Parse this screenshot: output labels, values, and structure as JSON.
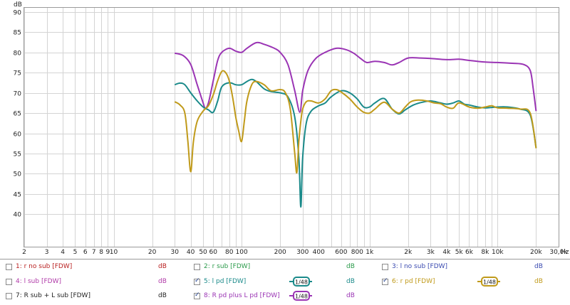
{
  "chart_data": {
    "type": "line",
    "ylabel": "dB",
    "xlabel": "Hz",
    "x_scale": "log",
    "xlim": [
      2,
      30000
    ],
    "ylim": [
      32,
      91
    ],
    "grid": true,
    "y_ticks": [
      40,
      45,
      50,
      55,
      60,
      65,
      70,
      75,
      80,
      85,
      90
    ],
    "x_ticks": [
      {
        "v": 2,
        "label": "2"
      },
      {
        "v": 3,
        "label": "3"
      },
      {
        "v": 4,
        "label": "4"
      },
      {
        "v": 5,
        "label": "5"
      },
      {
        "v": 6,
        "label": "6"
      },
      {
        "v": 7,
        "label": "7"
      },
      {
        "v": 8,
        "label": "8"
      },
      {
        "v": 9,
        "label": "9"
      },
      {
        "v": 10,
        "label": "10"
      },
      {
        "v": 20,
        "label": "20"
      },
      {
        "v": 30,
        "label": "30"
      },
      {
        "v": 40,
        "label": "40"
      },
      {
        "v": 50,
        "label": "50"
      },
      {
        "v": 60,
        "label": "60"
      },
      {
        "v": 80,
        "label": "80"
      },
      {
        "v": 100,
        "label": "100"
      },
      {
        "v": 200,
        "label": "200"
      },
      {
        "v": 300,
        "label": "300"
      },
      {
        "v": 400,
        "label": "400"
      },
      {
        "v": 600,
        "label": "600"
      },
      {
        "v": 800,
        "label": "800"
      },
      {
        "v": 1000,
        "label": "1k"
      },
      {
        "v": 2000,
        "label": "2k"
      },
      {
        "v": 3000,
        "label": "3k"
      },
      {
        "v": 4000,
        "label": "4k"
      },
      {
        "v": 5000,
        "label": "5k"
      },
      {
        "v": 6000,
        "label": "6k"
      },
      {
        "v": 8000,
        "label": "8k"
      },
      {
        "v": 10000,
        "label": "10k"
      },
      {
        "v": 20000,
        "label": "20k"
      },
      {
        "v": 30000,
        "label": "30,0k"
      }
    ],
    "series": [
      {
        "name": "8: R pd plus L pd [FDW]",
        "color": "#9a34b4",
        "x": [
          30,
          35,
          40,
          45,
          50,
          52,
          55,
          60,
          65,
          70,
          80,
          90,
          100,
          110,
          130,
          150,
          180,
          200,
          230,
          260,
          285,
          300,
          330,
          380,
          450,
          550,
          650,
          750,
          850,
          950,
          1100,
          1300,
          1500,
          1700,
          2000,
          2500,
          3000,
          4000,
          5000,
          6000,
          8000,
          10000,
          13000,
          16000,
          18000,
          19000,
          20000
        ],
        "y": [
          79.8,
          79.2,
          77.0,
          72.0,
          67.5,
          66.2,
          67.5,
          73.0,
          78.0,
          80.0,
          81.0,
          80.3,
          80.0,
          81.0,
          82.4,
          82.0,
          81.0,
          80.0,
          77.0,
          70.5,
          65.2,
          70.5,
          75.5,
          78.5,
          80.0,
          81.0,
          80.7,
          79.8,
          78.5,
          77.5,
          77.8,
          77.5,
          76.9,
          77.5,
          78.6,
          78.6,
          78.5,
          78.2,
          78.3,
          78.0,
          77.6,
          77.5,
          77.3,
          77.0,
          75.5,
          71.0,
          65.5
        ]
      },
      {
        "name": "5: l pd [FDW]",
        "color": "#1a8a8a",
        "x": [
          30,
          33,
          36,
          40,
          45,
          50,
          55,
          60,
          65,
          70,
          80,
          90,
          100,
          110,
          120,
          130,
          150,
          170,
          200,
          230,
          260,
          280,
          290,
          300,
          320,
          350,
          400,
          450,
          500,
          600,
          700,
          800,
          900,
          1000,
          1100,
          1300,
          1500,
          1700,
          1900,
          2200,
          2600,
          3000,
          3500,
          4000,
          4500,
          5000,
          5500,
          6000,
          7000,
          8000,
          10000,
          12000,
          15000,
          18000,
          20000
        ],
        "y": [
          72.0,
          72.4,
          72.0,
          70.0,
          68.0,
          66.5,
          65.8,
          65.2,
          68.0,
          71.5,
          72.5,
          72.0,
          72.0,
          72.8,
          73.3,
          72.8,
          71.0,
          70.3,
          70.0,
          69.0,
          64.0,
          54.0,
          41.8,
          54.0,
          62.5,
          65.5,
          66.8,
          67.5,
          69.0,
          70.5,
          70.0,
          68.5,
          66.5,
          66.5,
          67.5,
          68.6,
          66.0,
          64.8,
          65.8,
          67.0,
          67.7,
          68.0,
          67.6,
          67.2,
          67.5,
          68.0,
          67.2,
          67.0,
          66.5,
          66.3,
          66.5,
          66.5,
          66.0,
          64.5,
          56.5
        ]
      },
      {
        "name": "6: r pd [FDW]",
        "color": "#c09a1a",
        "x": [
          30,
          33,
          36,
          38,
          40,
          42,
          45,
          50,
          55,
          60,
          65,
          70,
          75,
          80,
          85,
          90,
          95,
          100,
          105,
          110,
          120,
          130,
          150,
          170,
          200,
          220,
          240,
          260,
          270,
          280,
          290,
          300,
          320,
          350,
          400,
          450,
          500,
          550,
          600,
          700,
          800,
          900,
          1000,
          1100,
          1300,
          1500,
          1700,
          1900,
          2100,
          2400,
          2800,
          3200,
          3600,
          4000,
          4500,
          5000,
          6000,
          7000,
          8000,
          9000,
          10000,
          12000,
          15000,
          18000,
          20000
        ],
        "y": [
          67.8,
          67.0,
          65.0,
          58.0,
          50.5,
          58.0,
          63.0,
          65.5,
          66.8,
          69.5,
          73.0,
          75.3,
          75.0,
          73.0,
          69.0,
          64.0,
          60.5,
          58.0,
          63.0,
          68.0,
          72.0,
          72.8,
          72.0,
          70.5,
          70.8,
          70.0,
          66.0,
          55.0,
          50.3,
          58.0,
          63.0,
          66.0,
          67.8,
          68.0,
          67.5,
          68.5,
          70.5,
          70.8,
          70.2,
          68.5,
          66.5,
          65.2,
          65.0,
          66.0,
          67.7,
          66.0,
          65.0,
          66.5,
          67.8,
          68.2,
          68.0,
          67.5,
          67.3,
          66.5,
          66.2,
          67.5,
          66.5,
          66.2,
          66.5,
          66.8,
          66.3,
          66.2,
          66.0,
          65.0,
          56.3
        ]
      }
    ]
  },
  "legend": {
    "rows": [
      [
        {
          "label": "1: r no sub [FDW]",
          "color": "#b81e1e",
          "unit": "dB",
          "checked": false,
          "smooth": ""
        },
        {
          "label": "2: r sub [FDW]",
          "color": "#2a9a4a",
          "unit": "dB",
          "checked": false,
          "smooth": ""
        },
        {
          "label": "3: l no sub [FDW]",
          "color": "#3a4ab0",
          "unit": "dB",
          "checked": false,
          "smooth": ""
        }
      ],
      [
        {
          "label": "4: l sub [FDW]",
          "color": "#b03aa8",
          "unit": "dB",
          "checked": false,
          "smooth": ""
        },
        {
          "label": "5: l pd [FDW]",
          "color": "#1a8a8a",
          "unit": "dB",
          "checked": true,
          "smooth": "1/48"
        },
        {
          "label": "6: r pd [FDW]",
          "color": "#c09a1a",
          "unit": "dB",
          "checked": true,
          "smooth": "1/48"
        }
      ],
      [
        {
          "label": "7: R sub + L sub [FDW]",
          "color": "#222222",
          "unit": "dB",
          "checked": false,
          "smooth": ""
        },
        {
          "label": "8: R pd plus L pd [FDW]",
          "color": "#9a34b4",
          "unit": "dB",
          "checked": true,
          "smooth": "1/48"
        }
      ]
    ]
  }
}
